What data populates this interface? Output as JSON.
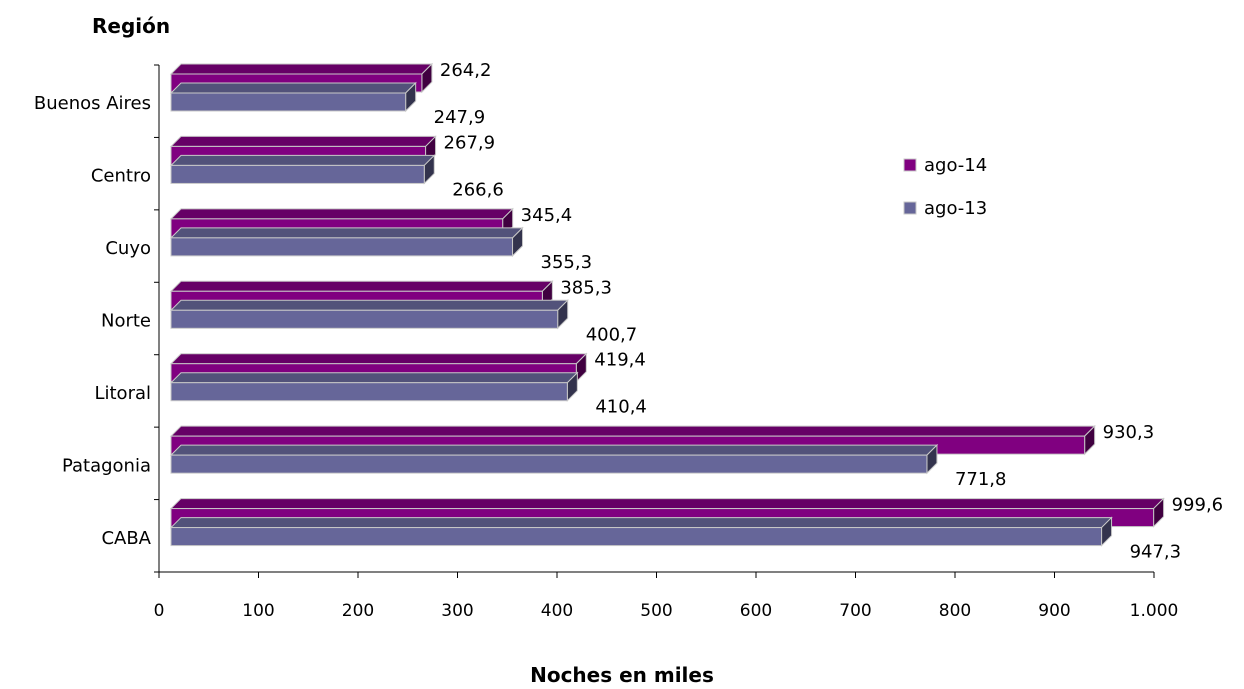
{
  "chart_data": {
    "type": "bar",
    "orientation": "horizontal",
    "style": "3d",
    "ylabel": "Región",
    "xlabel": "Noches en miles",
    "categories": [
      "Buenos Aires",
      "Centro",
      "Cuyo",
      "Norte",
      "Litoral",
      "Patagonia",
      "CABA"
    ],
    "series": [
      {
        "name": "ago-14",
        "color": "#800080",
        "values": [
          264.2,
          267.9,
          345.4,
          385.3,
          419.4,
          930.3,
          999.6
        ],
        "labels": [
          "264,2",
          "267,9",
          "345,4",
          "385,3",
          "419,4",
          "930,3",
          "999,6"
        ]
      },
      {
        "name": "ago-13",
        "color": "#666699",
        "values": [
          247.9,
          266.6,
          355.3,
          400.7,
          410.4,
          771.8,
          947.3
        ],
        "labels": [
          "247,9",
          "266,6",
          "355,3",
          "400,7",
          "410,4",
          "771,8",
          "947,3"
        ]
      }
    ],
    "xlim": [
      0,
      1000
    ],
    "xticks": [
      0,
      100,
      200,
      300,
      400,
      500,
      600,
      700,
      800,
      900,
      1000
    ],
    "xtick_labels": [
      "0",
      "100",
      "200",
      "300",
      "400",
      "500",
      "600",
      "700",
      "800",
      "900",
      "1.000"
    ],
    "grid": false,
    "legend_position": "right"
  }
}
